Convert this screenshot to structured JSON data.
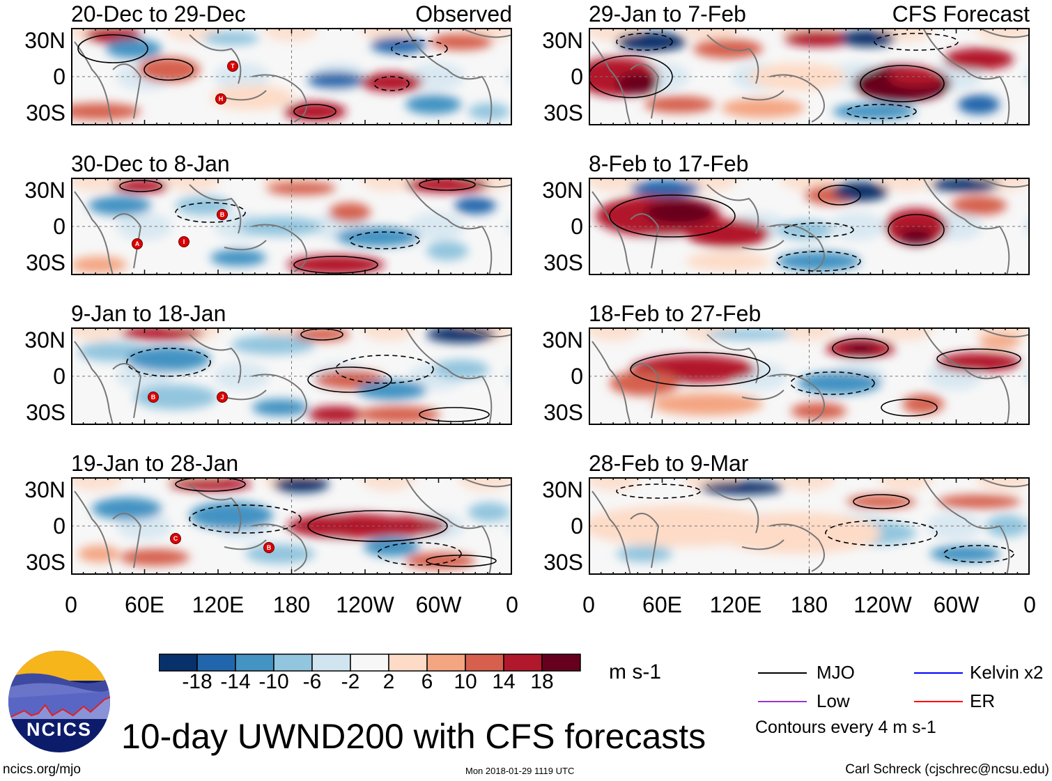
{
  "colors": {
    "levels": [
      "#08306b",
      "#2166ac",
      "#4393c3",
      "#92c5de",
      "#d1e5f0",
      "#f7f7f7",
      "#fddbc7",
      "#f4a582",
      "#d6604d",
      "#b2182b",
      "#67001f"
    ],
    "land": "#777777",
    "mjo": "#000000",
    "kelvin": "#0000ff",
    "low": "#9933cc",
    "er": "#ff0000"
  },
  "panels": [
    {
      "title": "20-Dec to 29-Dec",
      "tag": "Observed",
      "storms": [
        "T",
        "H"
      ]
    },
    {
      "title": "30-Dec to 8-Jan",
      "tag": "",
      "storms": [
        "B",
        "A",
        "I"
      ]
    },
    {
      "title": "9-Jan to 18-Jan",
      "tag": "",
      "storms": [
        "B",
        "J"
      ]
    },
    {
      "title": "19-Jan to 28-Jan",
      "tag": "",
      "storms": [
        "C",
        "B"
      ]
    },
    {
      "title": "29-Jan to 7-Feb",
      "tag": "CFS Forecast",
      "storms": []
    },
    {
      "title": "8-Feb to 17-Feb",
      "tag": "",
      "storms": []
    },
    {
      "title": "18-Feb to 27-Feb",
      "tag": "",
      "storms": []
    },
    {
      "title": "28-Feb to 9-Mar",
      "tag": "",
      "storms": []
    }
  ],
  "chart_data": {
    "type": "heatmap",
    "title": "10-day UWND200 with CFS forecasts",
    "variable": "200-hPa zonal wind anomaly",
    "units": "m s-1",
    "y_ticks": [
      "30N",
      "0",
      "30S"
    ],
    "x_ticks": [
      "0",
      "60E",
      "120E",
      "180",
      "120W",
      "60W",
      "0"
    ],
    "colorbar_ticks": [
      "-18",
      "-14",
      "-10",
      "-6",
      "-2",
      "2",
      "6",
      "10",
      "14",
      "18"
    ],
    "contour_interval_text": "Contours every 4 m s-1"
  },
  "legend": {
    "items": [
      {
        "label": "MJO"
      },
      {
        "label": "Kelvin x2"
      },
      {
        "label": "Low"
      },
      {
        "label": "ER"
      }
    ],
    "contours": "Contours every 4 m s-1"
  },
  "logo": {
    "text": "NCICS"
  },
  "footer": {
    "left": "ncics.org/mjo",
    "center": "Mon 2018-01-29 1119 UTC",
    "right": "Carl Schreck (cjschrec@ncsu.edu)"
  }
}
